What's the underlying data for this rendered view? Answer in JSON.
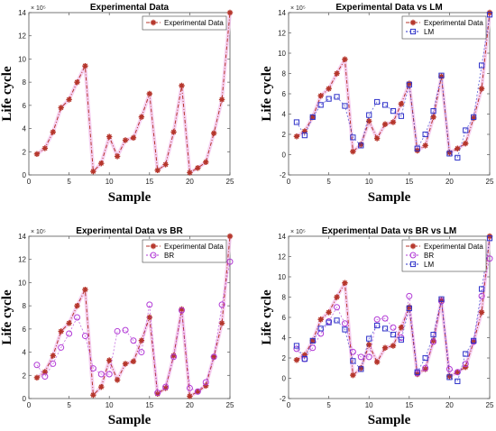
{
  "exponent_label": "× 10⁵",
  "colors": {
    "experimental": "#b5362b",
    "lm": "#2e31c9",
    "br": "#b23ad6",
    "halo": "#f4c6ef"
  },
  "series_defs": {
    "experimental": {
      "name": "Experimental Data",
      "marker": "star"
    },
    "lm": {
      "name": "LM",
      "marker": "square"
    },
    "br": {
      "name": "BR",
      "marker": "circle"
    }
  },
  "chart_data": [
    {
      "type": "line",
      "title": "Experimental Data",
      "xlabel": "Sample",
      "ylabel": "Life cycle",
      "xlim": [
        0,
        25
      ],
      "ylim": [
        0,
        14
      ],
      "xticks": [
        0,
        5,
        10,
        15,
        20,
        25
      ],
      "yticks": [
        0,
        2,
        4,
        6,
        8,
        10,
        12,
        14
      ],
      "legend": "top-right",
      "x": [
        1,
        2,
        3,
        4,
        5,
        6,
        7,
        8,
        9,
        10,
        11,
        12,
        13,
        14,
        15,
        16,
        17,
        18,
        19,
        20,
        21,
        22,
        23,
        24,
        25
      ],
      "series": [
        {
          "key": "experimental",
          "values": [
            1.8,
            2.3,
            3.7,
            5.8,
            6.5,
            8.0,
            9.4,
            0.3,
            1.0,
            3.3,
            1.6,
            3.0,
            3.2,
            5.0,
            7.0,
            0.4,
            0.9,
            3.7,
            7.7,
            0.2,
            0.6,
            1.1,
            3.6,
            6.5,
            14.0
          ]
        }
      ]
    },
    {
      "type": "line",
      "title": "Experimental Data vs LM",
      "xlabel": "Sample",
      "ylabel": "Life cycle",
      "xlim": [
        0,
        25
      ],
      "ylim": [
        -2,
        14
      ],
      "xticks": [
        0,
        5,
        10,
        15,
        20,
        25
      ],
      "yticks": [
        -2,
        0,
        2,
        4,
        6,
        8,
        10,
        12,
        14
      ],
      "legend": "top-right",
      "x": [
        1,
        2,
        3,
        4,
        5,
        6,
        7,
        8,
        9,
        10,
        11,
        12,
        13,
        14,
        15,
        16,
        17,
        18,
        19,
        20,
        21,
        22,
        23,
        24,
        25
      ],
      "series": [
        {
          "key": "experimental",
          "values": [
            1.8,
            2.3,
            3.7,
            5.8,
            6.5,
            8.0,
            9.4,
            0.3,
            1.0,
            3.3,
            1.6,
            3.0,
            3.2,
            5.0,
            7.0,
            0.4,
            0.9,
            3.7,
            7.7,
            0.2,
            0.6,
            1.1,
            3.6,
            6.5,
            14.0
          ]
        },
        {
          "key": "lm",
          "values": [
            3.2,
            1.9,
            3.7,
            4.9,
            5.5,
            5.7,
            4.8,
            1.7,
            0.9,
            3.9,
            5.2,
            4.9,
            4.3,
            3.8,
            6.9,
            0.6,
            2.0,
            4.3,
            7.8,
            0.1,
            -0.3,
            2.4,
            3.7,
            8.8,
            13.8
          ]
        }
      ]
    },
    {
      "type": "line",
      "title": "Experimental Data vs BR",
      "xlabel": "Sample",
      "ylabel": "Life cycle",
      "xlim": [
        0,
        25
      ],
      "ylim": [
        0,
        14
      ],
      "xticks": [
        0,
        5,
        10,
        15,
        20,
        25
      ],
      "yticks": [
        0,
        2,
        4,
        6,
        8,
        10,
        12,
        14
      ],
      "legend": "top-right",
      "x": [
        1,
        2,
        3,
        4,
        5,
        6,
        7,
        8,
        9,
        10,
        11,
        12,
        13,
        14,
        15,
        16,
        17,
        18,
        19,
        20,
        21,
        22,
        23,
        24,
        25
      ],
      "series": [
        {
          "key": "experimental",
          "values": [
            1.8,
            2.3,
            3.7,
            5.8,
            6.5,
            8.0,
            9.4,
            0.3,
            1.0,
            3.3,
            1.6,
            3.0,
            3.2,
            5.0,
            7.0,
            0.4,
            0.9,
            3.7,
            7.7,
            0.2,
            0.6,
            1.1,
            3.6,
            6.5,
            14.0
          ]
        },
        {
          "key": "br",
          "values": [
            2.9,
            1.9,
            3.0,
            4.4,
            5.6,
            7.0,
            5.4,
            2.6,
            2.1,
            2.1,
            5.8,
            5.9,
            5.0,
            4.0,
            8.1,
            0.5,
            1.0,
            3.6,
            7.6,
            0.9,
            0.6,
            1.4,
            3.6,
            8.1,
            11.8
          ]
        }
      ]
    },
    {
      "type": "line",
      "title": "Experimental Data vs BR vs LM",
      "xlabel": "Sample",
      "ylabel": "Life cycle",
      "xlim": [
        0,
        25
      ],
      "ylim": [
        -2,
        14
      ],
      "xticks": [
        0,
        5,
        10,
        15,
        20,
        25
      ],
      "yticks": [
        -2,
        0,
        2,
        4,
        6,
        8,
        10,
        12,
        14
      ],
      "legend": "top-right",
      "x": [
        1,
        2,
        3,
        4,
        5,
        6,
        7,
        8,
        9,
        10,
        11,
        12,
        13,
        14,
        15,
        16,
        17,
        18,
        19,
        20,
        21,
        22,
        23,
        24,
        25
      ],
      "series": [
        {
          "key": "experimental",
          "values": [
            1.8,
            2.3,
            3.7,
            5.8,
            6.5,
            8.0,
            9.4,
            0.3,
            1.0,
            3.3,
            1.6,
            3.0,
            3.2,
            5.0,
            7.0,
            0.4,
            0.9,
            3.7,
            7.7,
            0.2,
            0.6,
            1.1,
            3.6,
            6.5,
            14.0
          ]
        },
        {
          "key": "br",
          "values": [
            2.9,
            1.9,
            3.0,
            4.4,
            5.6,
            7.0,
            5.4,
            2.6,
            2.1,
            2.1,
            5.8,
            5.9,
            5.0,
            4.0,
            8.1,
            0.5,
            1.0,
            3.6,
            7.6,
            0.9,
            0.6,
            1.4,
            3.6,
            8.1,
            11.8
          ]
        },
        {
          "key": "lm",
          "values": [
            3.2,
            1.9,
            3.7,
            4.9,
            5.5,
            5.7,
            4.8,
            1.7,
            0.9,
            3.9,
            5.2,
            4.9,
            4.3,
            3.8,
            6.9,
            0.6,
            2.0,
            4.3,
            7.8,
            0.1,
            -0.3,
            2.4,
            3.7,
            8.8,
            13.8
          ]
        }
      ]
    }
  ]
}
